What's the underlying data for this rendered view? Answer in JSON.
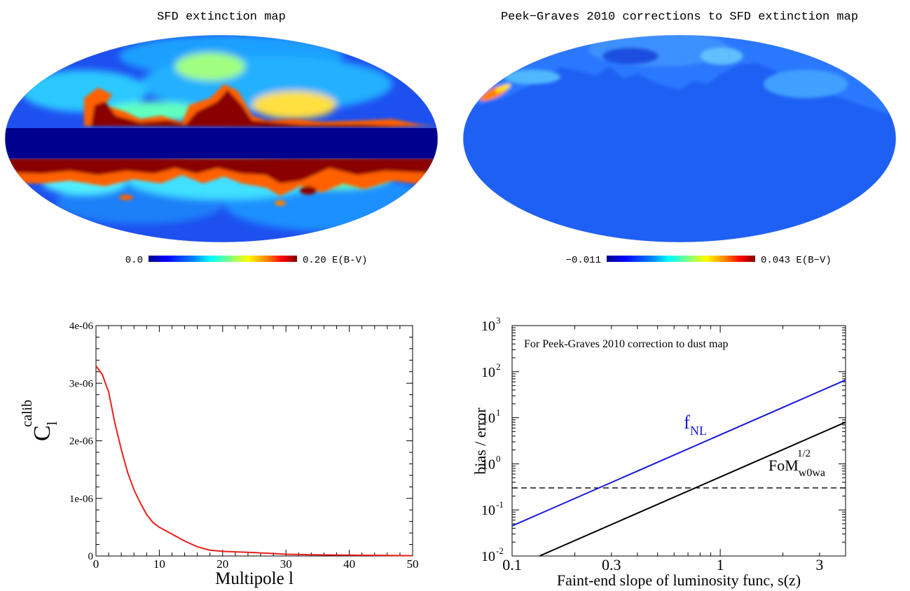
{
  "panels": {
    "sfd": {
      "title": "SFD extinction map",
      "colorbar_min": "0.0",
      "colorbar_max": "0.20 E(B-V)"
    },
    "pg": {
      "title": "Peek−Graves 2010 corrections to SFD extinction map",
      "colorbar_min": "−0.011",
      "colorbar_max": "0.043 E(B−V)"
    }
  },
  "colors": {
    "colormap": [
      "#00008f",
      "#0000ff",
      "#0080ff",
      "#00ffff",
      "#80ff80",
      "#ffff00",
      "#ff8000",
      "#ff0000",
      "#800000"
    ],
    "cl_line": "#e8201c",
    "fnl_line": "#1a1adc",
    "fom_line": "#000000"
  },
  "chart_data": [
    {
      "type": "line",
      "xlabel": "Multipole l",
      "ylabel_main": "C",
      "ylabel_sub": "l",
      "ylabel_sup": "calib",
      "xlim": [
        0,
        50
      ],
      "ylim": [
        0,
        4e-06
      ],
      "xticks": [
        0,
        10,
        20,
        30,
        40,
        50
      ],
      "yticks": [
        0,
        1e-06,
        2e-06,
        3e-06,
        4e-06
      ],
      "ytick_labels": [
        "0",
        "1e-06",
        "2e-06",
        "3e-06",
        "4e-06"
      ],
      "series": [
        {
          "x": [
            0,
            1,
            2,
            3,
            4,
            5,
            6,
            7,
            8,
            9,
            10,
            12,
            14,
            16,
            18,
            20,
            25,
            30,
            35,
            40,
            45,
            50
          ],
          "values": [
            3.3e-06,
            3.15e-06,
            2.85e-06,
            2.3e-06,
            1.85e-06,
            1.45e-06,
            1.15e-06,
            9.2e-07,
            7.2e-07,
            5.8e-07,
            5e-07,
            3.8e-07,
            2.6e-07,
            1.6e-07,
            1e-07,
            8e-08,
            6e-08,
            3e-08,
            2e-08,
            1.5e-08,
            1e-08,
            5e-09
          ]
        }
      ]
    },
    {
      "type": "line",
      "xscale": "log",
      "yscale": "log",
      "xlabel": "Faint-end slope of luminosity func, s(z)",
      "ylabel": "bias / error",
      "xlim": [
        0.1,
        4
      ],
      "ylim": [
        0.01,
        1000
      ],
      "xticks": [
        0.1,
        0.3,
        1,
        3
      ],
      "xtick_labels": [
        "0.1",
        "0.3",
        "1",
        "3"
      ],
      "ytick_exponents": [
        "-2",
        "-1",
        "0",
        "1",
        "2",
        "3"
      ],
      "annotation": "For Peek-Graves 2010 correction to dust map",
      "threshold": 0.3,
      "series": [
        {
          "name": "f",
          "name_sub": "NL",
          "x": [
            0.1,
            4
          ],
          "values": [
            0.045,
            66
          ]
        },
        {
          "name": "FoM",
          "name_sub": "w0wa",
          "name_sup": "1/2",
          "x": [
            0.1,
            4
          ],
          "values": [
            0.0055,
            8
          ]
        }
      ]
    }
  ]
}
